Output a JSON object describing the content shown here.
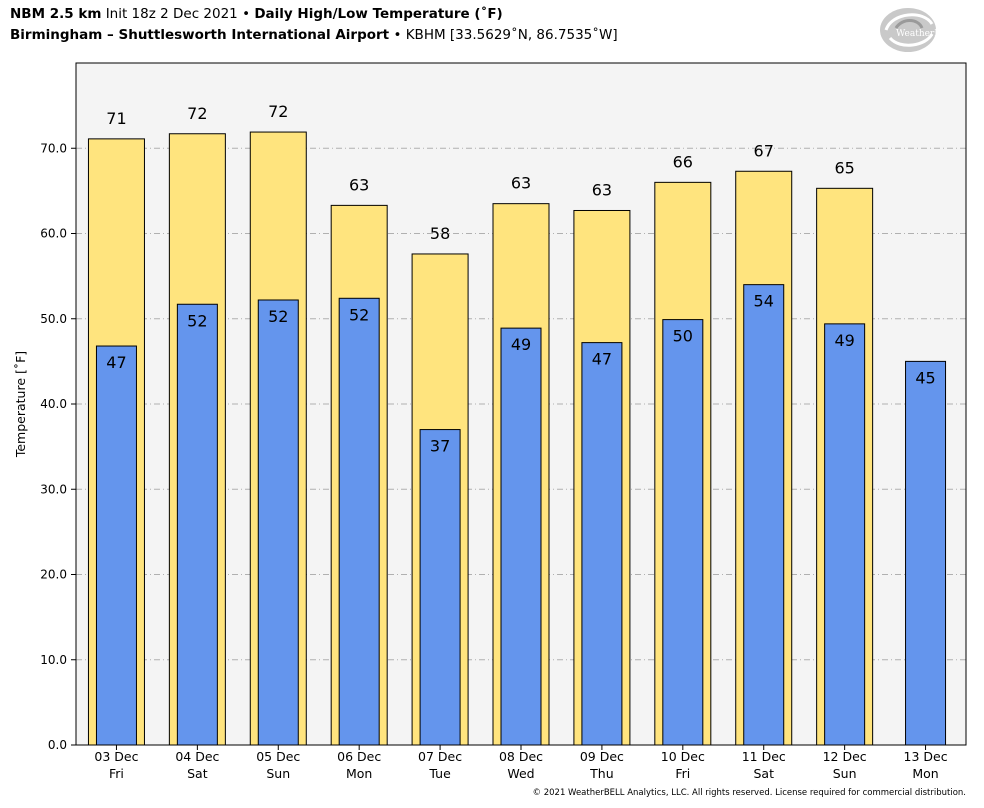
{
  "header": {
    "model": "NBM 2.5 km",
    "init": "Init 18z 2 Dec 2021",
    "sep1": "•",
    "product": "Daily High/Low Temperature (˚F)",
    "location": "Birmingham – Shuttlesworth International Airport",
    "sep2": "•",
    "station": "KBHM [33.5629˚N, 86.7535˚W]"
  },
  "logo": {
    "text": "WeatherBELL"
  },
  "copyright": "© 2021 WeatherBELL Analytics, LLC. All rights reserved. License required for commercial distribution.",
  "colors": {
    "high": "#FFE47E",
    "low": "#6495ED",
    "plot_bg": "#F4F4F4",
    "grid": "#B0B0B0"
  },
  "chart_data": {
    "type": "bar",
    "ylabel": "Temperature [˚F]",
    "ylim": [
      0,
      80
    ],
    "yticks": [
      0,
      10,
      20,
      30,
      40,
      50,
      60,
      70
    ],
    "ytick_labels": [
      "0.0",
      "10.0",
      "20.0",
      "30.0",
      "40.0",
      "50.0",
      "60.0",
      "70.0"
    ],
    "grid": true,
    "categories": [
      [
        "03 Dec",
        "Fri"
      ],
      [
        "04 Dec",
        "Sat"
      ],
      [
        "05 Dec",
        "Sun"
      ],
      [
        "06 Dec",
        "Mon"
      ],
      [
        "07 Dec",
        "Tue"
      ],
      [
        "08 Dec",
        "Wed"
      ],
      [
        "09 Dec",
        "Thu"
      ],
      [
        "10 Dec",
        "Fri"
      ],
      [
        "11 Dec",
        "Sat"
      ],
      [
        "12 Dec",
        "Sun"
      ],
      [
        "13 Dec",
        "Mon"
      ]
    ],
    "series": [
      {
        "values": [
          71.1,
          71.7,
          71.9,
          63.3,
          57.6,
          63.5,
          62.7,
          66.0,
          67.3,
          65.3,
          null
        ],
        "labels": [
          "71",
          "72",
          "72",
          "63",
          "58",
          "63",
          "63",
          "66",
          "67",
          "65",
          ""
        ]
      },
      {
        "values": [
          46.8,
          51.7,
          52.2,
          52.4,
          37.0,
          48.9,
          47.2,
          49.9,
          54.0,
          49.4,
          45.0
        ],
        "labels": [
          "47",
          "52",
          "52",
          "52",
          "37",
          "49",
          "47",
          "50",
          "54",
          "49",
          "45"
        ]
      }
    ]
  }
}
